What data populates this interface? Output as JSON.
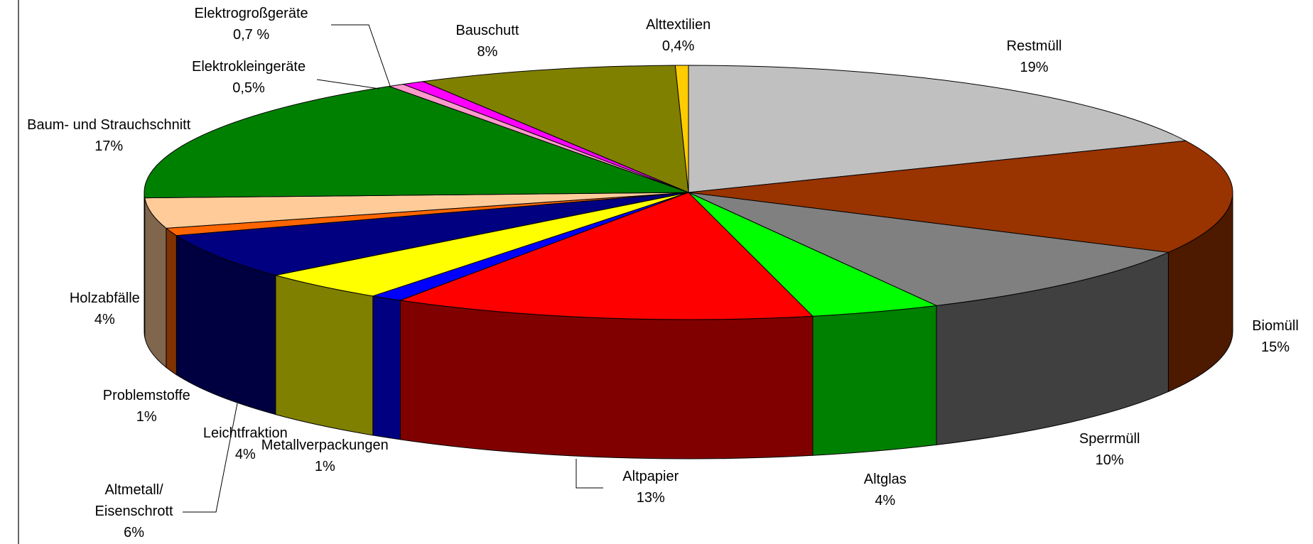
{
  "chart_data": {
    "type": "pie",
    "categories": [
      "Restmüll",
      "Biomüll",
      "Sperrmüll",
      "Altglas",
      "Altpapier",
      "Metallverpackungen",
      "Leichtfraktion",
      "Altmetall/\nEisenschrott",
      "Problemstoffe",
      "Holzabfälle",
      "Baum- und Strauchschnitt",
      "Elektrokleingeräte",
      "Elektrogroßgeräte",
      "Bauschutt",
      "Alttextilien"
    ],
    "values": [
      19,
      15,
      10,
      4,
      13,
      1,
      4,
      6,
      1,
      4,
      17,
      0.5,
      0.7,
      8,
      0.4
    ],
    "value_labels": [
      "19%",
      "15%",
      "10%",
      "4%",
      "13%",
      "1%",
      "4%",
      "6%",
      "1%",
      "4%",
      "17%",
      "0,5%",
      "0,7 %",
      "8%",
      "0,4%"
    ],
    "colors": [
      "#c0c0c0",
      "#993300",
      "#808080",
      "#00ff00",
      "#ff0000",
      "#0000ff",
      "#ffff00",
      "#000080",
      "#ff6600",
      "#ffcc99",
      "#008000",
      "#ff99cc",
      "#ff00ff",
      "#808000",
      "#ffcc00"
    ]
  }
}
